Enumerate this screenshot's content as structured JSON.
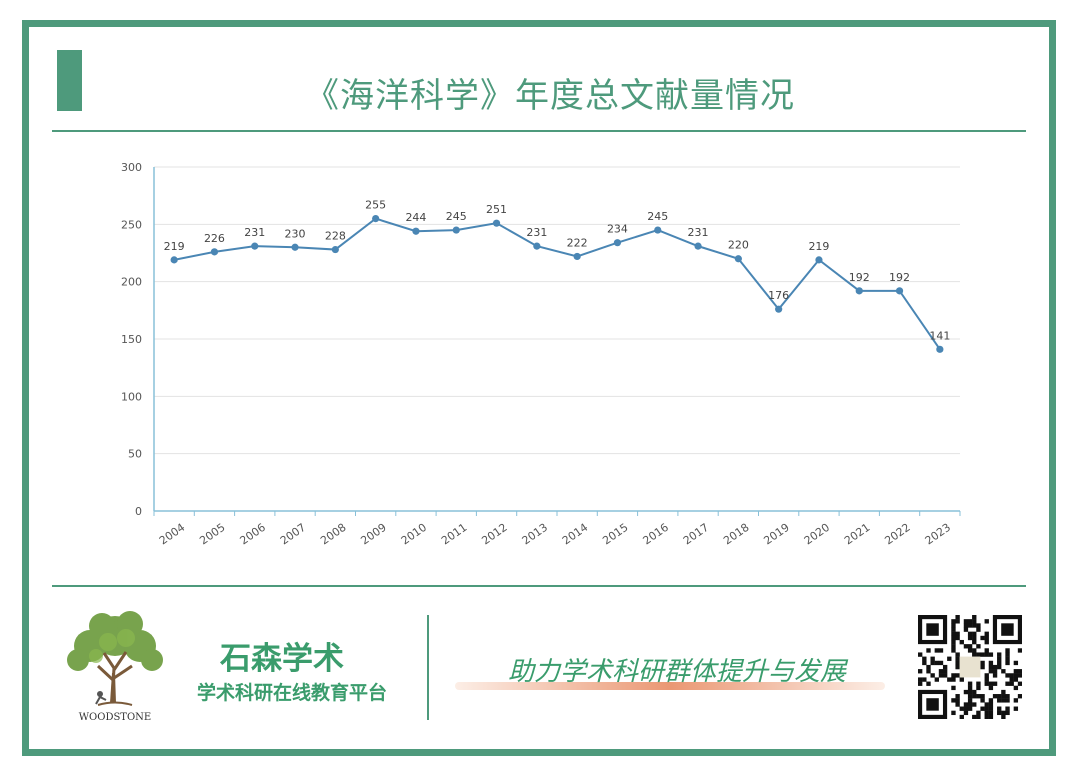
{
  "page": {
    "title": "《海洋科学》年度总文献量情况"
  },
  "chart_data": {
    "type": "line",
    "title": "",
    "xlabel": "",
    "ylabel": "",
    "categories": [
      "2004",
      "2005",
      "2006",
      "2007",
      "2008",
      "2009",
      "2010",
      "2011",
      "2012",
      "2013",
      "2014",
      "2015",
      "2016",
      "2017",
      "2018",
      "2019",
      "2020",
      "2021",
      "2022",
      "2023"
    ],
    "series": [
      {
        "values": [
          219,
          226,
          231,
          230,
          228,
          255,
          244,
          245,
          251,
          231,
          222,
          234,
          245,
          231,
          220,
          176,
          219,
          192,
          192,
          141
        ]
      }
    ],
    "ylim": [
      0,
      300
    ],
    "yticks": [
      0,
      50,
      100,
      150,
      200,
      250,
      300
    ],
    "grid": true,
    "data_labels": true,
    "line_color": "#4a86b4",
    "grid_color": "#e3e3e3",
    "axis_color": "#88c0d8"
  },
  "footer": {
    "logo_text": "WOODSTONE",
    "brand_name": "石森学术",
    "brand_sub": "学术科研在线教育平台",
    "slogan": "助力学术科研群体提升与发展"
  },
  "colors": {
    "accent": "#4e9a7c",
    "brand_green": "#3a9c6c"
  }
}
